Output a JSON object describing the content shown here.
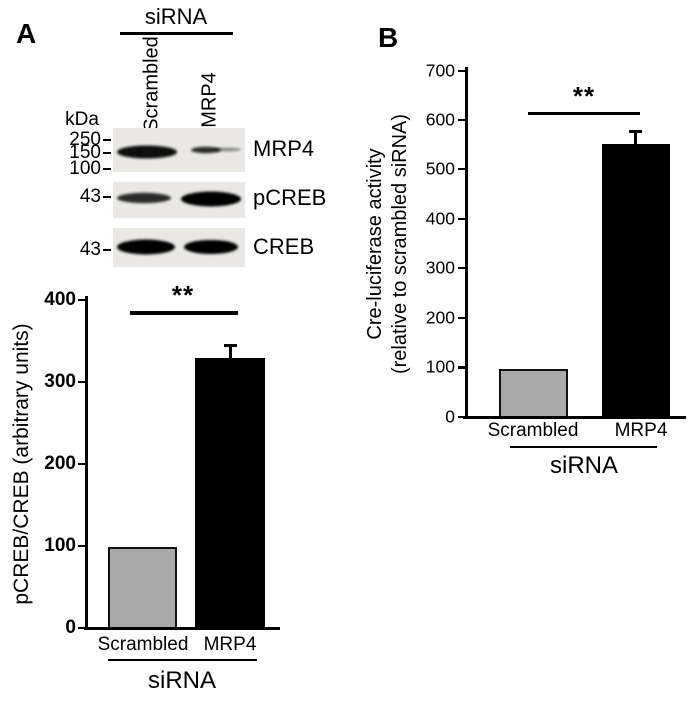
{
  "panelA": {
    "label": "A",
    "blot": {
      "heading": "siRNA",
      "kda_label": "kDa",
      "lane_labels": [
        "Scrambled",
        "MRP4"
      ],
      "markers": [
        "250",
        "150",
        "100",
        "43",
        "43"
      ],
      "row_labels": [
        "MRP4",
        "pCREB",
        "CREB"
      ]
    }
  },
  "panelB": {
    "label": "B",
    "ylabel_line1": "Cre-luciferase activity",
    "ylabel_line2": "(relative to scrambled siRNA)"
  },
  "chart_data": [
    {
      "id": "panelA-bar-chart",
      "type": "bar",
      "categories": [
        "Scrambled",
        "MRP4"
      ],
      "values": [
        100,
        330
      ],
      "error_plus": [
        0,
        17
      ],
      "bar_colors": [
        "#a9a9a9",
        "#000000"
      ],
      "title": "",
      "xlabel": "siRNA",
      "ylabel": "pCREB/CREB (arbitrary units)",
      "ylim": [
        0,
        400
      ],
      "yticks": [
        0,
        100,
        200,
        300,
        400
      ],
      "grid": false,
      "legend": false,
      "significance": "**"
    },
    {
      "id": "panelB-bar-chart",
      "type": "bar",
      "categories": [
        "Scrambled",
        "MRP4"
      ],
      "values": [
        100,
        555
      ],
      "error_plus": [
        0,
        28
      ],
      "bar_colors": [
        "#a9a9a9",
        "#000000"
      ],
      "title": "",
      "xlabel": "siRNA",
      "ylabel": "Cre-luciferase activity (relative to scrambled siRNA)",
      "ylim": [
        0,
        700
      ],
      "yticks": [
        0,
        100,
        200,
        300,
        400,
        500,
        600,
        700
      ],
      "grid": false,
      "legend": false,
      "significance": "**"
    }
  ]
}
